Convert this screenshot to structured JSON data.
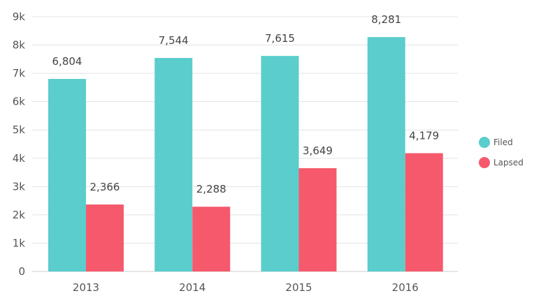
{
  "chart_data": {
    "type": "bar",
    "categories": [
      "2013",
      "2014",
      "2015",
      "2016"
    ],
    "series": [
      {
        "name": "Filed",
        "color": "#5ACDCC",
        "values": [
          6804,
          7544,
          7615,
          8281
        ],
        "labels": [
          "6,804",
          "7,544",
          "7,615",
          "8,281"
        ]
      },
      {
        "name": "Lapsed",
        "color": "#F6596C",
        "values": [
          2366,
          2288,
          3649,
          4179
        ],
        "labels": [
          "2,366",
          "2,288",
          "3,649",
          "4,179"
        ]
      }
    ],
    "ylim": [
      0,
      9000
    ],
    "yticks": [
      0,
      1000,
      2000,
      3000,
      4000,
      5000,
      6000,
      7000,
      8000,
      9000
    ],
    "ytick_labels": [
      "0",
      "1k",
      "2k",
      "3k",
      "4k",
      "5k",
      "6k",
      "7k",
      "8k",
      "9k"
    ],
    "grid": true,
    "legend": "right"
  }
}
